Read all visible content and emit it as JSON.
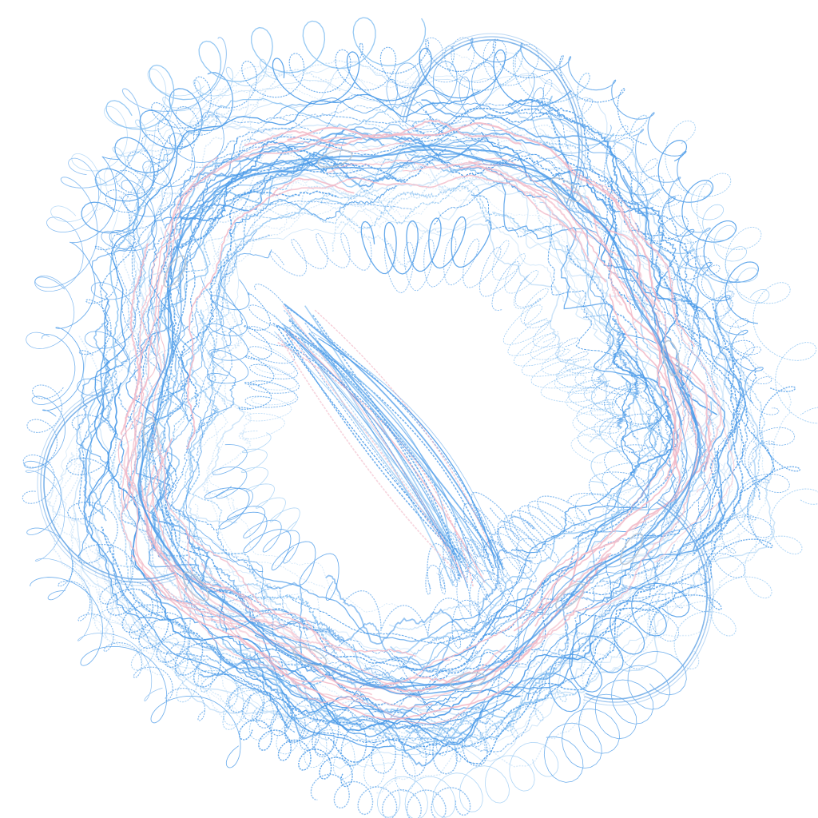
{
  "artwork": {
    "subject": "tangled-wire-ring",
    "colors": {
      "background": "#ffffff",
      "primary_stroke": "#4a9ae8",
      "light_stroke": "#8cc3f2",
      "pale_stroke": "#c9e2f8",
      "accent_pink": "#f2b8c6",
      "loop_stroke": "#6aa8e6",
      "node_stroke": "#b9c4d2"
    },
    "strand_count": 260,
    "pink_strand_count": 40,
    "large_loop_count": 3,
    "node_count": 10
  }
}
